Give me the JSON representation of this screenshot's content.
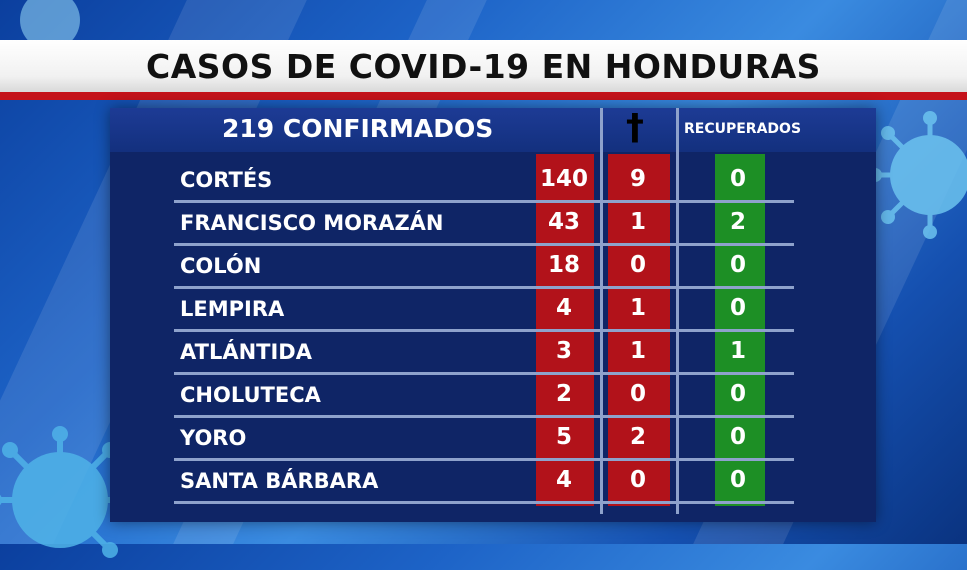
{
  "title": "CASOS  DE COVID-19 EN HONDURAS",
  "header": {
    "confirmed_label": "219 CONFIRMADOS",
    "deaths_symbol": "†",
    "recovered_label": "RECUPERADOS"
  },
  "colors": {
    "confirmed": "#b2121a",
    "deaths": "#b2121a",
    "recovered": "#1d8f25",
    "panel": "#0f2566",
    "title_underline": "#c4121a"
  },
  "rows": [
    {
      "department": "CORTÉS",
      "confirmed": "140",
      "deaths": "9",
      "recovered": "0"
    },
    {
      "department": "FRANCISCO MORAZÁN",
      "confirmed": "43",
      "deaths": "1",
      "recovered": "2"
    },
    {
      "department": "COLÓN",
      "confirmed": "18",
      "deaths": "0",
      "recovered": "0"
    },
    {
      "department": "LEMPIRA",
      "confirmed": "4",
      "deaths": "1",
      "recovered": "0"
    },
    {
      "department": "ATLÁNTIDA",
      "confirmed": "3",
      "deaths": "1",
      "recovered": "1"
    },
    {
      "department": "CHOLUTECA",
      "confirmed": "2",
      "deaths": "0",
      "recovered": "0"
    },
    {
      "department": "YORO",
      "confirmed": "5",
      "deaths": "2",
      "recovered": "0"
    },
    {
      "department": "SANTA BÁRBARA",
      "confirmed": "4",
      "deaths": "0",
      "recovered": "0"
    }
  ],
  "decorations": [
    "virus-icon",
    "virus-icon",
    "virus-icon"
  ]
}
